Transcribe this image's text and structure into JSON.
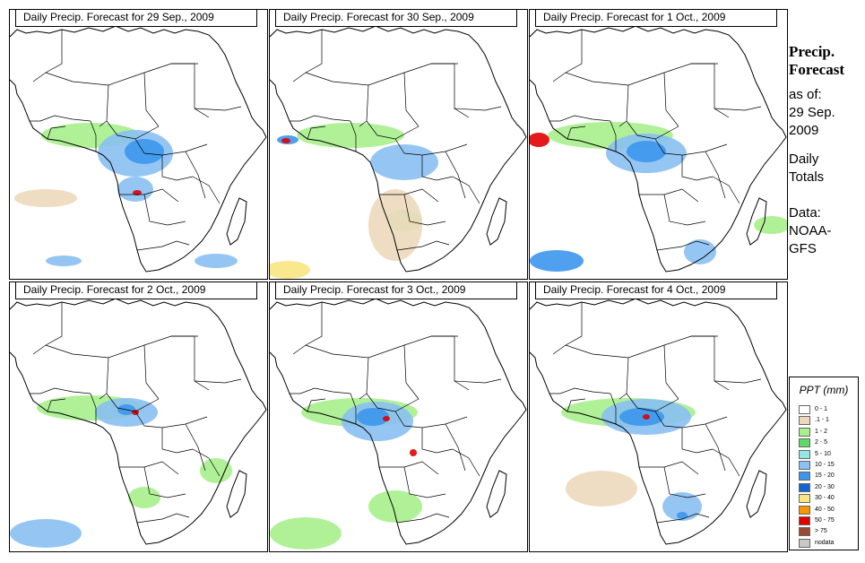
{
  "panels": [
    {
      "title": "Daily Precip. Forecast for  29 Sep., 2009"
    },
    {
      "title": "Daily Precip. Forecast for  30 Sep., 2009"
    },
    {
      "title": "Daily Precip. Forecast for  1 Oct., 2009"
    },
    {
      "title": "Daily Precip. Forecast for  2 Oct., 2009"
    },
    {
      "title": "Daily Precip. Forecast for  3 Oct., 2009"
    },
    {
      "title": "Daily Precip. Forecast for  4 Oct., 2009"
    }
  ],
  "side": {
    "title_line1": "Precip.",
    "title_line2": "Forecast",
    "asof": "as of:",
    "date_line1": "29 Sep.",
    "date_line2": "2009",
    "daily": "Daily",
    "totals": "Totals",
    "data_label": "Data:",
    "source_line1": "NOAA-",
    "source_line2": "GFS"
  },
  "legend": {
    "title": "PPT (mm)",
    "items": [
      {
        "label": "0 - 1",
        "color": "#ffffff"
      },
      {
        "label": ".1 - 1",
        "color": "#ecd9bd"
      },
      {
        "label": "1 - 2",
        "color": "#a7f08c"
      },
      {
        "label": "2 - 5",
        "color": "#5fd86a"
      },
      {
        "label": "5 - 10",
        "color": "#93e6e6"
      },
      {
        "label": "10 - 15",
        "color": "#8ac0f2"
      },
      {
        "label": "15 - 20",
        "color": "#3c96ec"
      },
      {
        "label": "20 - 30",
        "color": "#1464d2"
      },
      {
        "label": "30 - 40",
        "color": "#fae682"
      },
      {
        "label": "40 - 50",
        "color": "#fa9600"
      },
      {
        "label": "50 - 75",
        "color": "#e10000"
      },
      {
        "label": "> 75",
        "color": "#9a4a30"
      },
      {
        "label": "nodata",
        "color": "#c8c8c8"
      }
    ]
  }
}
